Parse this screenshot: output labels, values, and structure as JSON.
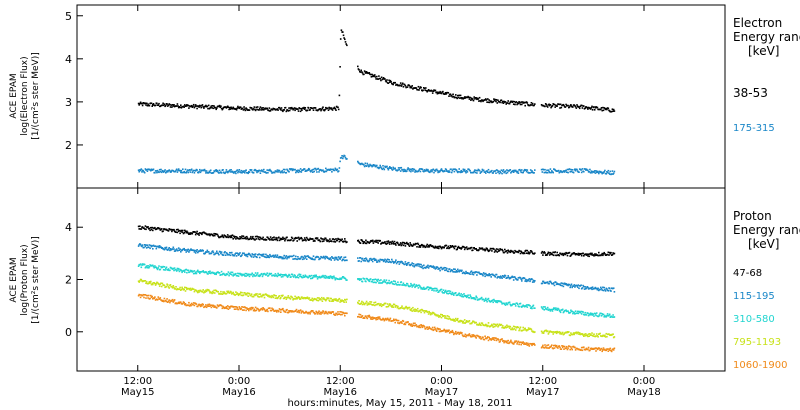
{
  "chart_data": [
    {
      "type": "scatter",
      "panel": "electron",
      "ylabel": [
        "ACE EPAM",
        "log(Electron Flux)",
        "[1/(cm²s ster MeV)]"
      ],
      "ylim": [
        1.0,
        5.25
      ],
      "yticks": [
        2,
        3,
        4,
        5
      ],
      "legend_title": [
        "Electron",
        "Energy ranges",
        "[keV]"
      ],
      "series": [
        {
          "name": "38-53",
          "color": "#000000",
          "x": [
            0,
            0.25,
            0.5,
            0.75,
            0.99,
            1.0,
            1.05,
            1.1,
            1.25,
            1.4,
            1.5,
            1.6,
            1.8,
            2.0,
            2.2,
            2.35
          ],
          "y": [
            2.95,
            2.9,
            2.85,
            2.82,
            2.85,
            4.7,
            4.0,
            3.7,
            3.45,
            3.3,
            3.2,
            3.1,
            3.0,
            2.92,
            2.88,
            2.8
          ]
        },
        {
          "name": "175-315",
          "color": "#1a87c8",
          "x": [
            0,
            0.25,
            0.5,
            0.75,
            0.99,
            1.0,
            1.1,
            1.25,
            1.4,
            1.6,
            1.8,
            2.0,
            2.2,
            2.35
          ],
          "y": [
            1.4,
            1.4,
            1.38,
            1.4,
            1.42,
            1.75,
            1.55,
            1.45,
            1.4,
            1.4,
            1.38,
            1.4,
            1.4,
            1.35
          ]
        }
      ]
    },
    {
      "type": "scatter",
      "panel": "proton",
      "ylabel": [
        "ACE EPAM",
        "log(Proton Flux)",
        "[1/(cm²s ster MeV)]"
      ],
      "ylim": [
        -1.5,
        5.5
      ],
      "yticks": [
        0,
        2,
        4
      ],
      "legend_title": [
        "Proton",
        "Energy ranges",
        "[keV]"
      ],
      "series": [
        {
          "name": "47-68",
          "color": "#000000",
          "x": [
            0,
            0.25,
            0.5,
            0.75,
            1.0,
            1.25,
            1.4,
            1.6,
            1.8,
            2.0,
            2.2,
            2.35
          ],
          "y": [
            4.0,
            3.8,
            3.6,
            3.55,
            3.5,
            3.4,
            3.3,
            3.2,
            3.1,
            3.0,
            2.95,
            3.0
          ]
        },
        {
          "name": "115-195",
          "color": "#1a87c8",
          "x": [
            0,
            0.25,
            0.5,
            0.75,
            1.0,
            1.25,
            1.4,
            1.6,
            1.8,
            2.0,
            2.2,
            2.35
          ],
          "y": [
            3.3,
            3.1,
            2.95,
            2.85,
            2.8,
            2.7,
            2.5,
            2.3,
            2.1,
            1.9,
            1.7,
            1.6
          ]
        },
        {
          "name": "310-580",
          "color": "#22d5d0",
          "x": [
            0,
            0.25,
            0.5,
            0.75,
            1.0,
            1.25,
            1.4,
            1.6,
            1.8,
            2.0,
            2.2,
            2.35
          ],
          "y": [
            2.55,
            2.3,
            2.2,
            2.15,
            2.05,
            1.9,
            1.7,
            1.4,
            1.1,
            0.9,
            0.7,
            0.6
          ]
        },
        {
          "name": "795-1193",
          "color": "#c8e21a",
          "x": [
            0,
            0.25,
            0.5,
            0.75,
            1.0,
            1.25,
            1.4,
            1.6,
            1.8,
            2.0,
            2.2,
            2.35
          ],
          "y": [
            1.95,
            1.6,
            1.45,
            1.3,
            1.2,
            1.0,
            0.8,
            0.4,
            0.2,
            0.0,
            -0.1,
            -0.15
          ]
        },
        {
          "name": "1060-1900",
          "color": "#f08a1a",
          "x": [
            0,
            0.25,
            0.5,
            0.75,
            1.0,
            1.25,
            1.4,
            1.6,
            1.8,
            2.0,
            2.2,
            2.35
          ],
          "y": [
            1.4,
            1.05,
            0.9,
            0.8,
            0.7,
            0.45,
            0.2,
            -0.1,
            -0.35,
            -0.55,
            -0.65,
            -0.7
          ]
        }
      ]
    }
  ],
  "x_axis": {
    "ticks": [
      {
        "t": 0.0,
        "time": "12:00",
        "date": "May15"
      },
      {
        "t": 0.5,
        "time": "0:00",
        "date": "May16"
      },
      {
        "t": 1.0,
        "time": "12:00",
        "date": "May16"
      },
      {
        "t": 1.5,
        "time": "0:00",
        "date": "May17"
      },
      {
        "t": 2.0,
        "time": "12:00",
        "date": "May17"
      },
      {
        "t": 2.5,
        "time": "0:00",
        "date": "May18"
      }
    ],
    "label": "hours:minutes, May 15, 2011 - May 18, 2011"
  }
}
